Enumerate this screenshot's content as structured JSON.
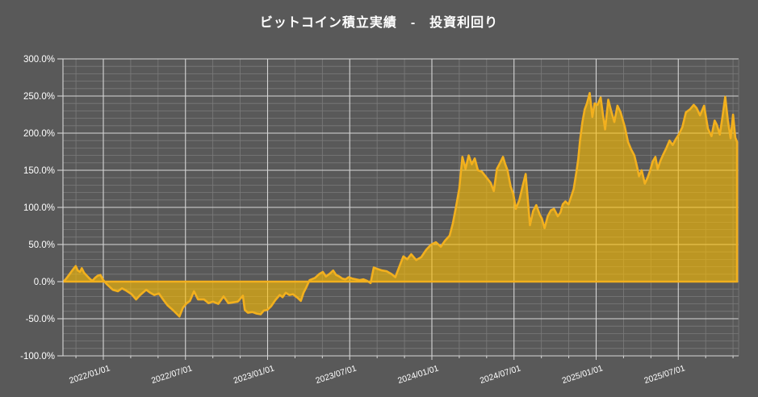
{
  "page": {
    "background": "#595959"
  },
  "chart_data": {
    "type": "area",
    "title": "ビットコイン積立実績　-　投資利回り",
    "legend": "none",
    "grid": true,
    "colors": {
      "background": "#595959",
      "line": "#F2B01E",
      "fill": "#FFC000",
      "fill_opacity": 0.6,
      "grid_minor": "#7B7B7B",
      "grid_major": "#D6D6D6",
      "axis": "#D6D6D6",
      "text": "#FFFFFF"
    },
    "y_axis": {
      "unit": "%",
      "min": -100,
      "max": 300,
      "major_step": 50,
      "minor_step": 10,
      "tick_values": [
        300,
        250,
        200,
        150,
        100,
        50,
        0,
        -50,
        -100
      ],
      "tick_labels": [
        "300.0%",
        "250.0%",
        "200.0%",
        "150.0%",
        "100.0%",
        "50.0%",
        "0.0%",
        "-50.0%",
        "-100.0%"
      ]
    },
    "x_axis": {
      "range_start": "2021/10/01",
      "range_end": "2025/11/15",
      "minor_grid_interval_months": 2,
      "ticks": [
        {
          "label": "2022/01/01",
          "month_index": 0
        },
        {
          "label": "2022/07/01",
          "month_index": 6
        },
        {
          "label": "2023/01/01",
          "month_index": 12
        },
        {
          "label": "2023/07/01",
          "month_index": 18
        },
        {
          "label": "2024/01/01",
          "month_index": 24
        },
        {
          "label": "2024/07/01",
          "month_index": 30
        },
        {
          "label": "2025/01/01",
          "month_index": 36
        },
        {
          "label": "2025/07/01",
          "month_index": 42
        }
      ]
    },
    "series": [
      {
        "name": "投資利回り",
        "points": [
          [
            "2021-10-04",
            0
          ],
          [
            "2021-10-10",
            4
          ],
          [
            "2021-10-16",
            9
          ],
          [
            "2021-10-22",
            14
          ],
          [
            "2021-10-27",
            18
          ],
          [
            "2021-10-31",
            21
          ],
          [
            "2021-11-05",
            15
          ],
          [
            "2021-11-10",
            13
          ],
          [
            "2021-11-14",
            18
          ],
          [
            "2021-11-19",
            12
          ],
          [
            "2021-11-25",
            8
          ],
          [
            "2021-12-01",
            4
          ],
          [
            "2021-12-07",
            1
          ],
          [
            "2021-12-13",
            5
          ],
          [
            "2021-12-19",
            8
          ],
          [
            "2021-12-25",
            9
          ],
          [
            "2022-01-01",
            2
          ],
          [
            "2022-01-08",
            -3
          ],
          [
            "2022-01-15",
            -7
          ],
          [
            "2022-01-22",
            -11
          ],
          [
            "2022-02-03",
            -13
          ],
          [
            "2022-02-12",
            -9
          ],
          [
            "2022-02-21",
            -12
          ],
          [
            "2022-03-03",
            -17
          ],
          [
            "2022-03-13",
            -24
          ],
          [
            "2022-03-22",
            -18
          ],
          [
            "2022-04-05",
            -11
          ],
          [
            "2022-04-14",
            -15
          ],
          [
            "2022-04-23",
            -18
          ],
          [
            "2022-05-03",
            -16
          ],
          [
            "2022-05-12",
            -24
          ],
          [
            "2022-05-22",
            -32
          ],
          [
            "2022-06-03",
            -38
          ],
          [
            "2022-06-13",
            -44
          ],
          [
            "2022-06-18",
            -47
          ],
          [
            "2022-06-26",
            -35
          ],
          [
            "2022-07-04",
            -29
          ],
          [
            "2022-07-11",
            -26
          ],
          [
            "2022-07-20",
            -13
          ],
          [
            "2022-07-29",
            -24
          ],
          [
            "2022-08-12",
            -24
          ],
          [
            "2022-08-22",
            -29
          ],
          [
            "2022-09-01",
            -27
          ],
          [
            "2022-09-13",
            -30
          ],
          [
            "2022-09-25",
            -20
          ],
          [
            "2022-10-05",
            -29
          ],
          [
            "2022-10-15",
            -28
          ],
          [
            "2022-10-26",
            -27
          ],
          [
            "2022-11-07",
            -19
          ],
          [
            "2022-11-11",
            -38
          ],
          [
            "2022-11-18",
            -42
          ],
          [
            "2022-11-28",
            -41
          ],
          [
            "2022-12-07",
            -43
          ],
          [
            "2022-12-16",
            -44
          ],
          [
            "2022-12-23",
            -39
          ],
          [
            "2022-12-31",
            -38
          ],
          [
            "2023-01-09",
            -33
          ],
          [
            "2023-01-18",
            -25
          ],
          [
            "2023-01-28",
            -18
          ],
          [
            "2023-02-04",
            -21
          ],
          [
            "2023-02-11",
            -15
          ],
          [
            "2023-02-19",
            -18
          ],
          [
            "2023-02-27",
            -17
          ],
          [
            "2023-03-07",
            -22
          ],
          [
            "2023-03-14",
            -26
          ],
          [
            "2023-03-20",
            -15
          ],
          [
            "2023-03-26",
            -8
          ],
          [
            "2023-04-03",
            2
          ],
          [
            "2023-04-15",
            5
          ],
          [
            "2023-04-24",
            10
          ],
          [
            "2023-05-02",
            13
          ],
          [
            "2023-05-09",
            7
          ],
          [
            "2023-05-18",
            11
          ],
          [
            "2023-05-25",
            15
          ],
          [
            "2023-06-01",
            9
          ],
          [
            "2023-06-08",
            7
          ],
          [
            "2023-06-15",
            4
          ],
          [
            "2023-06-22",
            3
          ],
          [
            "2023-06-29",
            6
          ],
          [
            "2023-07-07",
            4
          ],
          [
            "2023-07-15",
            3
          ],
          [
            "2023-07-23",
            2
          ],
          [
            "2023-08-01",
            3
          ],
          [
            "2023-08-09",
            1
          ],
          [
            "2023-08-17",
            -2
          ],
          [
            "2023-08-24",
            19
          ],
          [
            "2023-09-02",
            17
          ],
          [
            "2023-09-12",
            15
          ],
          [
            "2023-09-22",
            14
          ],
          [
            "2023-10-03",
            10
          ],
          [
            "2023-10-11",
            6
          ],
          [
            "2023-10-23",
            25
          ],
          [
            "2023-10-29",
            34
          ],
          [
            "2023-11-07",
            30
          ],
          [
            "2023-11-16",
            37
          ],
          [
            "2023-11-27",
            29
          ],
          [
            "2023-12-08",
            33
          ],
          [
            "2023-12-19",
            43
          ],
          [
            "2023-12-30",
            50
          ],
          [
            "2024-01-10",
            53
          ],
          [
            "2024-01-21",
            47
          ],
          [
            "2024-01-30",
            55
          ],
          [
            "2024-02-10",
            62
          ],
          [
            "2024-02-17",
            78
          ],
          [
            "2024-02-24",
            100
          ],
          [
            "2024-03-01",
            125
          ],
          [
            "2024-03-08",
            168
          ],
          [
            "2024-03-15",
            152
          ],
          [
            "2024-03-22",
            170
          ],
          [
            "2024-03-29",
            158
          ],
          [
            "2024-04-05",
            166
          ],
          [
            "2024-04-12",
            150
          ],
          [
            "2024-04-21",
            148
          ],
          [
            "2024-05-01",
            140
          ],
          [
            "2024-05-10",
            133
          ],
          [
            "2024-05-17",
            122
          ],
          [
            "2024-05-24",
            152
          ],
          [
            "2024-05-31",
            160
          ],
          [
            "2024-06-07",
            168
          ],
          [
            "2024-06-12",
            158
          ],
          [
            "2024-06-17",
            150
          ],
          [
            "2024-06-24",
            128
          ],
          [
            "2024-06-30",
            118
          ],
          [
            "2024-07-05",
            98
          ],
          [
            "2024-07-13",
            110
          ],
          [
            "2024-07-20",
            128
          ],
          [
            "2024-07-27",
            145
          ],
          [
            "2024-08-06",
            76
          ],
          [
            "2024-08-13",
            95
          ],
          [
            "2024-08-20",
            103
          ],
          [
            "2024-08-28",
            90
          ],
          [
            "2024-09-02",
            85
          ],
          [
            "2024-09-08",
            72
          ],
          [
            "2024-09-15",
            88
          ],
          [
            "2024-09-22",
            96
          ],
          [
            "2024-09-29",
            98
          ],
          [
            "2024-10-07",
            88
          ],
          [
            "2024-10-13",
            93
          ],
          [
            "2024-10-18",
            104
          ],
          [
            "2024-10-24",
            108
          ],
          [
            "2024-10-31",
            104
          ],
          [
            "2024-11-05",
            112
          ],
          [
            "2024-11-12",
            125
          ],
          [
            "2024-11-18",
            148
          ],
          [
            "2024-11-22",
            165
          ],
          [
            "2024-11-26",
            190
          ],
          [
            "2024-12-01",
            215
          ],
          [
            "2024-12-06",
            232
          ],
          [
            "2024-12-11",
            240
          ],
          [
            "2024-12-17",
            254
          ],
          [
            "2024-12-23",
            222
          ],
          [
            "2024-12-28",
            240
          ],
          [
            "2025-01-04",
            238
          ],
          [
            "2025-01-11",
            248
          ],
          [
            "2025-01-16",
            225
          ],
          [
            "2025-01-21",
            205
          ],
          [
            "2025-01-28",
            245
          ],
          [
            "2025-02-04",
            230
          ],
          [
            "2025-02-11",
            215
          ],
          [
            "2025-02-18",
            237
          ],
          [
            "2025-02-25",
            228
          ],
          [
            "2025-03-04",
            208
          ],
          [
            "2025-03-11",
            188
          ],
          [
            "2025-03-18",
            178
          ],
          [
            "2025-03-25",
            170
          ],
          [
            "2025-03-31",
            155
          ],
          [
            "2025-04-05",
            142
          ],
          [
            "2025-04-11",
            150
          ],
          [
            "2025-04-18",
            132
          ],
          [
            "2025-04-24",
            140
          ],
          [
            "2025-04-30",
            150
          ],
          [
            "2025-05-05",
            162
          ],
          [
            "2025-05-11",
            168
          ],
          [
            "2025-05-16",
            152
          ],
          [
            "2025-05-23",
            164
          ],
          [
            "2025-05-29",
            172
          ],
          [
            "2025-06-05",
            180
          ],
          [
            "2025-06-12",
            190
          ],
          [
            "2025-06-19",
            184
          ],
          [
            "2025-06-26",
            192
          ],
          [
            "2025-07-02",
            198
          ],
          [
            "2025-07-10",
            208
          ],
          [
            "2025-07-18",
            228
          ],
          [
            "2025-07-27",
            232
          ],
          [
            "2025-08-05",
            238
          ],
          [
            "2025-08-11",
            234
          ],
          [
            "2025-08-19",
            224
          ],
          [
            "2025-08-28",
            237
          ],
          [
            "2025-09-06",
            206
          ],
          [
            "2025-09-14",
            196
          ],
          [
            "2025-09-21",
            217
          ],
          [
            "2025-09-26",
            211
          ],
          [
            "2025-10-02",
            198
          ],
          [
            "2025-10-08",
            222
          ],
          [
            "2025-10-14",
            249
          ],
          [
            "2025-10-20",
            217
          ],
          [
            "2025-10-26",
            193
          ],
          [
            "2025-11-01",
            225
          ],
          [
            "2025-11-06",
            194
          ],
          [
            "2025-11-10",
            188
          ]
        ]
      }
    ]
  }
}
